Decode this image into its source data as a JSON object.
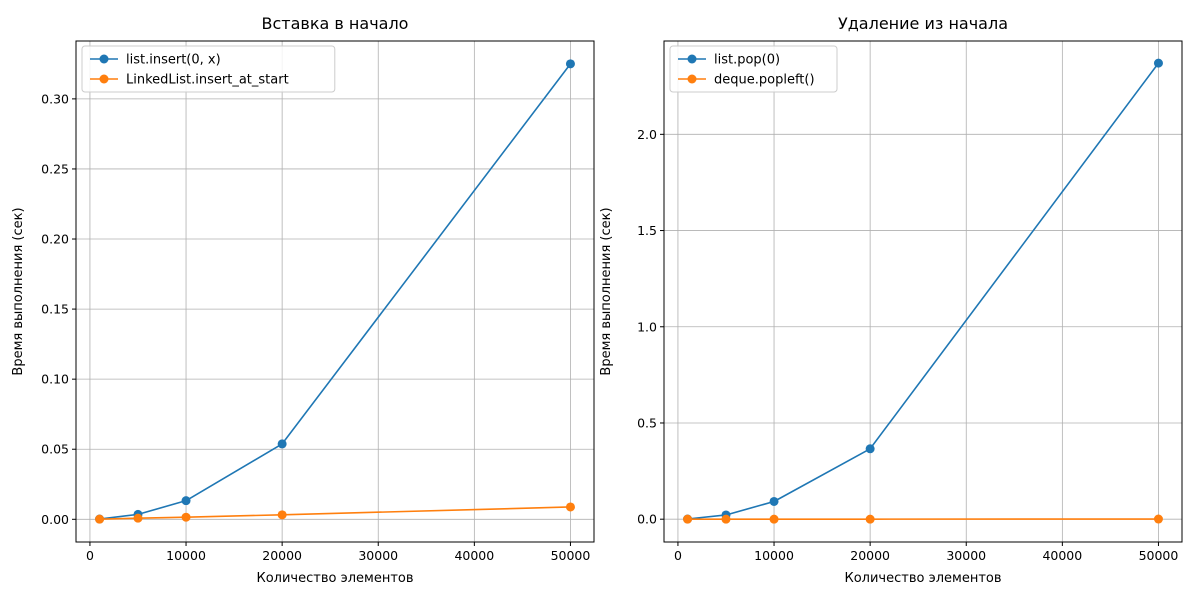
{
  "colors": {
    "series1": "#1f77b4",
    "series2": "#ff7f0e",
    "grid": "#b0b0b0",
    "axis": "#000000",
    "legend_border": "#cccccc"
  },
  "chart_data": [
    {
      "type": "line",
      "title": "Вставка в начало",
      "xlabel": "Количество элементов",
      "ylabel": "Время выполнения (сек)",
      "x": [
        1000,
        5000,
        10000,
        20000,
        50000
      ],
      "xlim": [
        -1450,
        52450
      ],
      "ylim": [
        -0.0162,
        0.3413
      ],
      "xticks": [
        0,
        10000,
        20000,
        30000,
        40000,
        50000
      ],
      "xtick_labels": [
        "0",
        "10000",
        "20000",
        "30000",
        "40000",
        "50000"
      ],
      "yticks": [
        0,
        0.05,
        0.1,
        0.15,
        0.2,
        0.25,
        0.3
      ],
      "ytick_labels": [
        "0.00",
        "0.05",
        "0.10",
        "0.15",
        "0.20",
        "0.25",
        "0.30"
      ],
      "grid": true,
      "legend_position": "upper-left",
      "series": [
        {
          "name": "list.insert(0, x)",
          "values": [
            0.0002,
            0.0035,
            0.0133,
            0.0538,
            0.325
          ]
        },
        {
          "name": "LinkedList.insert_at_start",
          "values": [
            0.0001,
            0.0008,
            0.0015,
            0.0032,
            0.0088
          ]
        }
      ]
    },
    {
      "type": "line",
      "title": "Удаление из начала",
      "xlabel": "Количество элементов",
      "ylabel": "Время выполнения (сек)",
      "x": [
        1000,
        5000,
        10000,
        20000,
        50000
      ],
      "xlim": [
        -1450,
        52450
      ],
      "ylim": [
        -0.1185,
        2.485
      ],
      "xticks": [
        0,
        10000,
        20000,
        30000,
        40000,
        50000
      ],
      "xtick_labels": [
        "0",
        "10000",
        "20000",
        "30000",
        "40000",
        "50000"
      ],
      "yticks": [
        0,
        0.5,
        1.0,
        1.5,
        2.0
      ],
      "ytick_labels": [
        "0.0",
        "0.5",
        "1.0",
        "1.5",
        "2.0"
      ],
      "grid": true,
      "legend_position": "upper-left",
      "series": [
        {
          "name": "list.pop(0)",
          "values": [
            0.001,
            0.022,
            0.092,
            0.366,
            2.37
          ]
        },
        {
          "name": "deque.popleft()",
          "values": [
            0.0001,
            0.0001,
            0.0002,
            0.0003,
            0.0008
          ]
        }
      ]
    }
  ]
}
